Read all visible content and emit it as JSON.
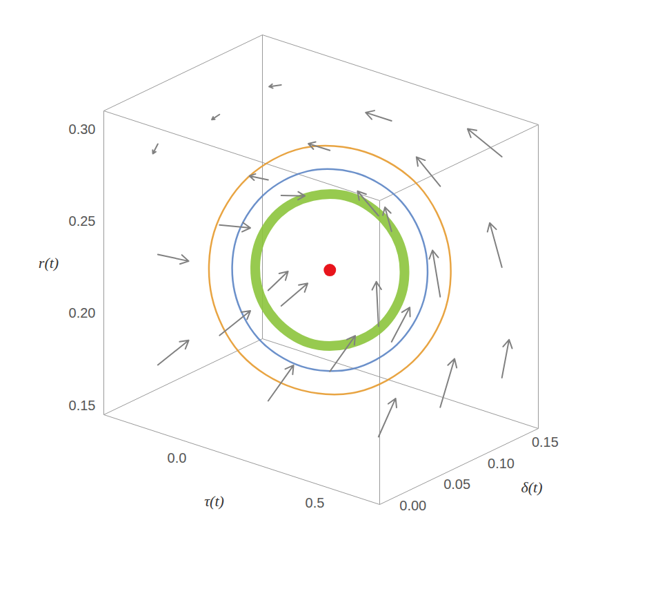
{
  "chart_data": {
    "type": "vector_field_3d",
    "x_label": "τ(t)",
    "y_label": "δ(t)",
    "z_label": "r(t)",
    "xlim": [
      -0.3,
      0.7
    ],
    "ylim": [
      -0.01,
      0.17
    ],
    "zlim": [
      0.145,
      0.31
    ],
    "xticks": [
      {
        "value": 0.0,
        "label": "0.0"
      },
      {
        "value": 0.5,
        "label": "0.5"
      }
    ],
    "yticks": [
      {
        "value": 0.0,
        "label": "0.00"
      },
      {
        "value": 0.05,
        "label": "0.05"
      },
      {
        "value": 0.1,
        "label": "0.10"
      },
      {
        "value": 0.15,
        "label": "0.15"
      }
    ],
    "zticks": [
      0.15,
      {
        "value": 0.2,
        "label": "0.20"
      },
      0.25,
      {
        "value": 0.3,
        "label": "0.30"
      }
    ],
    "arrow_color": "#808080",
    "arrows": [
      {
        "from": [
          -0.2,
          0.02,
          0.17
        ],
        "to": [
          -0.12,
          0.03,
          0.185
        ]
      },
      {
        "from": [
          -0.2,
          0.09,
          0.17
        ],
        "to": [
          -0.12,
          0.1,
          0.185
        ]
      },
      {
        "from": [
          -0.2,
          0.16,
          0.17
        ],
        "to": [
          -0.12,
          0.165,
          0.185
        ]
      },
      {
        "from": [
          0.2,
          0.02,
          0.17
        ],
        "to": [
          0.26,
          0.03,
          0.19
        ]
      },
      {
        "from": [
          0.2,
          0.09,
          0.17
        ],
        "to": [
          0.26,
          0.1,
          0.19
        ]
      },
      {
        "from": [
          0.2,
          0.16,
          0.17
        ],
        "to": [
          0.25,
          0.165,
          0.19
        ]
      },
      {
        "from": [
          0.6,
          0.02,
          0.17
        ],
        "to": [
          0.63,
          0.03,
          0.19
        ]
      },
      {
        "from": [
          0.6,
          0.09,
          0.17
        ],
        "to": [
          0.62,
          0.1,
          0.195
        ]
      },
      {
        "from": [
          0.6,
          0.16,
          0.17
        ],
        "to": [
          0.61,
          0.165,
          0.19
        ]
      },
      {
        "from": [
          -0.2,
          0.02,
          0.23
        ],
        "to": [
          -0.12,
          0.03,
          0.228
        ]
      },
      {
        "from": [
          -0.2,
          0.09,
          0.23
        ],
        "to": [
          -0.12,
          0.1,
          0.23
        ]
      },
      {
        "from": [
          -0.2,
          0.16,
          0.23
        ],
        "to": [
          -0.13,
          0.165,
          0.232
        ]
      },
      {
        "from": [
          0.2,
          0.02,
          0.23
        ],
        "to": [
          0.24,
          0.03,
          0.24
        ]
      },
      {
        "from": [
          0.2,
          0.16,
          0.23
        ],
        "to": [
          0.16,
          0.165,
          0.24
        ]
      },
      {
        "from": [
          0.6,
          0.02,
          0.23
        ],
        "to": [
          0.56,
          0.03,
          0.25
        ]
      },
      {
        "from": [
          0.6,
          0.09,
          0.23
        ],
        "to": [
          0.54,
          0.1,
          0.25
        ]
      },
      {
        "from": [
          0.6,
          0.16,
          0.23
        ],
        "to": [
          0.54,
          0.165,
          0.25
        ]
      },
      {
        "from": [
          -0.2,
          0.02,
          0.29
        ],
        "to": [
          -0.25,
          0.03,
          0.28
        ]
      },
      {
        "from": [
          -0.2,
          0.09,
          0.29
        ],
        "to": [
          -0.26,
          0.1,
          0.282
        ]
      },
      {
        "from": [
          -0.2,
          0.16,
          0.29
        ],
        "to": [
          -0.26,
          0.165,
          0.285
        ]
      },
      {
        "from": [
          0.2,
          0.02,
          0.29
        ],
        "to": [
          0.1,
          0.03,
          0.285
        ]
      },
      {
        "from": [
          0.2,
          0.09,
          0.29
        ],
        "to": [
          0.09,
          0.1,
          0.286
        ]
      },
      {
        "from": [
          0.2,
          0.16,
          0.29
        ],
        "to": [
          0.09,
          0.165,
          0.288
        ]
      },
      {
        "from": [
          0.6,
          0.02,
          0.29
        ],
        "to": [
          0.46,
          0.04,
          0.292
        ]
      },
      {
        "from": [
          0.6,
          0.09,
          0.29
        ],
        "to": [
          0.45,
          0.11,
          0.294
        ]
      },
      {
        "from": [
          0.6,
          0.16,
          0.29
        ],
        "to": [
          0.45,
          0.168,
          0.296
        ]
      }
    ],
    "series": [
      {
        "color": "#e69a2e",
        "values": [
          [
            0.62,
            0.09,
            0.225
          ],
          [
            0.564,
            0.11,
            0.2525
          ],
          [
            0.41,
            0.125,
            0.273
          ],
          [
            0.2,
            0.13,
            0.28
          ],
          [
            -0.01,
            0.125,
            0.273
          ],
          [
            -0.164,
            0.11,
            0.2525
          ],
          [
            -0.22,
            0.09,
            0.225
          ],
          [
            -0.164,
            0.07,
            0.1975
          ],
          [
            -0.01,
            0.055,
            0.177
          ],
          [
            0.2,
            0.05,
            0.17
          ],
          [
            0.41,
            0.055,
            0.177
          ],
          [
            0.564,
            0.07,
            0.1975
          ]
        ]
      },
      {
        "color": "#5b84c4",
        "values": [
          [
            0.54,
            0.09,
            0.225
          ],
          [
            0.494,
            0.106,
            0.2475
          ],
          [
            0.37,
            0.118,
            0.264
          ],
          [
            0.2,
            0.122,
            0.27
          ],
          [
            0.03,
            0.118,
            0.264
          ],
          [
            -0.094,
            0.106,
            0.2475
          ],
          [
            -0.14,
            0.09,
            0.225
          ],
          [
            -0.094,
            0.074,
            0.2025
          ],
          [
            0.03,
            0.062,
            0.186
          ],
          [
            0.2,
            0.058,
            0.18
          ],
          [
            0.37,
            0.062,
            0.186
          ],
          [
            0.494,
            0.074,
            0.2025
          ]
        ]
      },
      {
        "color": "#8cc43c",
        "values": [
          [
            0.46,
            0.09,
            0.225
          ],
          [
            0.425,
            0.102,
            0.242
          ],
          [
            0.33,
            0.111,
            0.254
          ],
          [
            0.2,
            0.114,
            0.259
          ],
          [
            0.07,
            0.111,
            0.254
          ],
          [
            -0.025,
            0.102,
            0.242
          ],
          [
            -0.06,
            0.09,
            0.225
          ],
          [
            -0.025,
            0.078,
            0.208
          ],
          [
            0.07,
            0.069,
            0.196
          ],
          [
            0.2,
            0.066,
            0.191
          ],
          [
            0.33,
            0.069,
            0.196
          ],
          [
            0.425,
            0.078,
            0.208
          ]
        ]
      }
    ],
    "equilibrium": {
      "point": [
        0.2,
        0.09,
        0.225
      ],
      "color": "#e8141c"
    }
  }
}
